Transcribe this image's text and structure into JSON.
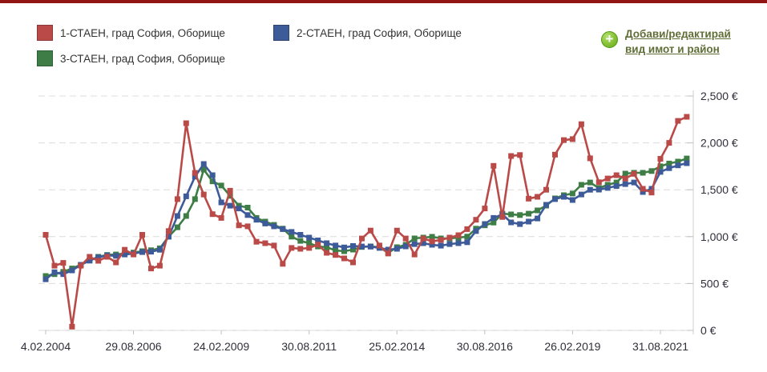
{
  "page": {
    "top_border_color": "#931414",
    "background_color": "#ffffff"
  },
  "legend": {
    "items": [
      {
        "label": "1-СТАЕН, град София, Оборище",
        "color": "#b94a48"
      },
      {
        "label": "2-СТАЕН, град София, Оборище",
        "color": "#3d5b99"
      },
      {
        "label": "3-СТАЕН, град София, Оборище",
        "color": "#3e7e46"
      }
    ]
  },
  "add_link": {
    "line1": "Добави/редактирай",
    "line2": "вид имот и район",
    "icon": "plus-circle",
    "icon_color": "#8dc63f",
    "text_color": "#5f6e36"
  },
  "chart_data": {
    "type": "line",
    "title": "",
    "xlabel": "",
    "ylabel": "",
    "ylim": [
      0,
      2500
    ],
    "grid": "horizontal-dashed",
    "legend_position": "top",
    "y_axis_side": "right",
    "y_ticks": [
      0,
      500,
      1000,
      1500,
      2000,
      2500
    ],
    "y_tick_labels": [
      "0 €",
      "500 €",
      "1,000 €",
      "1,500 €",
      "2,000 €",
      "2,500 €"
    ],
    "x_tick_indices": [
      0,
      10,
      20,
      30,
      40,
      50,
      60,
      70
    ],
    "x_tick_labels": [
      "4.02.2004",
      "29.08.2006",
      "24.02.2009",
      "30.08.2011",
      "25.02.2014",
      "30.08.2016",
      "26.02.2019",
      "31.08.2021"
    ],
    "x_frequency": "quarterly",
    "series": [
      {
        "name": "1-СТАЕН, град София, Оборище",
        "color": "#b94a48",
        "values": [
          1020,
          690,
          720,
          40,
          690,
          785,
          742,
          785,
          725,
          860,
          810,
          1020,
          660,
          690,
          1060,
          1400,
          2210,
          1680,
          1450,
          1240,
          1200,
          1490,
          1120,
          1110,
          945,
          930,
          905,
          710,
          880,
          870,
          880,
          915,
          828,
          805,
          768,
          725,
          980,
          1065,
          905,
          820,
          1065,
          980,
          810,
          980,
          950,
          965,
          990,
          1015,
          1080,
          1180,
          1300,
          1755,
          1210,
          1860,
          1870,
          1405,
          1425,
          1500,
          1875,
          2030,
          2040,
          2200,
          1835,
          1580,
          1620,
          1655,
          1620,
          1670,
          1510,
          1470,
          1830,
          2000,
          2235,
          2278
        ]
      },
      {
        "name": "2-СТАЕН, град София, Оборище",
        "color": "#3d5b99",
        "values": [
          545,
          620,
          600,
          640,
          700,
          745,
          780,
          800,
          795,
          810,
          820,
          835,
          840,
          860,
          1000,
          1220,
          1430,
          1640,
          1775,
          1655,
          1365,
          1330,
          1300,
          1230,
          1180,
          1140,
          1110,
          1080,
          1050,
          1020,
          990,
          960,
          930,
          905,
          885,
          900,
          895,
          893,
          880,
          862,
          870,
          896,
          921,
          930,
          913,
          904,
          921,
          930,
          940,
          1060,
          1135,
          1200,
          1237,
          1152,
          1134,
          1160,
          1194,
          1340,
          1400,
          1425,
          1391,
          1450,
          1500,
          1502,
          1520,
          1540,
          1561,
          1578,
          1476,
          1510,
          1690,
          1730,
          1760,
          1783
        ]
      },
      {
        "name": "3-СТАЕН, град София, Оборище",
        "color": "#3e7e46",
        "values": [
          580,
          600,
          625,
          660,
          700,
          745,
          785,
          805,
          810,
          820,
          830,
          845,
          855,
          875,
          1000,
          1100,
          1220,
          1400,
          1715,
          1590,
          1545,
          1435,
          1330,
          1310,
          1200,
          1160,
          1125,
          1085,
          1000,
          955,
          930,
          895,
          887,
          853,
          845,
          862,
          890,
          896,
          887,
          828,
          887,
          913,
          981,
          990,
          998,
          981,
          981,
          990,
          1000,
          1085,
          1120,
          1150,
          1245,
          1237,
          1230,
          1245,
          1280,
          1331,
          1408,
          1442,
          1460,
          1553,
          1578,
          1518,
          1553,
          1578,
          1672,
          1681,
          1681,
          1700,
          1750,
          1780,
          1800,
          1834
        ]
      }
    ]
  }
}
